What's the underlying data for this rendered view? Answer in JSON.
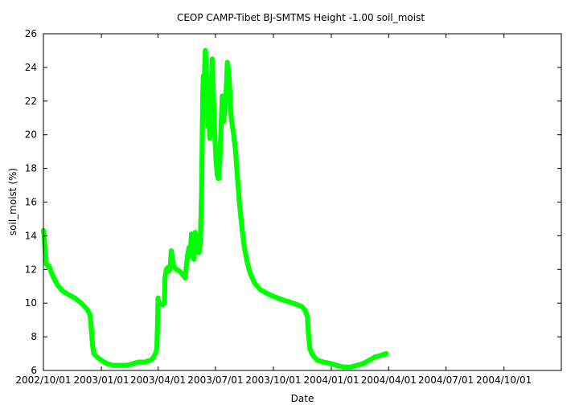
{
  "chart_data": {
    "type": "scatter",
    "title": "CEOP CAMP-Tibet BJ-SMTMS Height -1.00 soil_moist",
    "xlabel": "Date",
    "ylabel": "soil_moist (%)",
    "x_range": [
      "2002/10/01",
      "2004/12/31"
    ],
    "ylim": [
      6,
      26
    ],
    "x_ticks": [
      "2002/10/01",
      "2003/01/01",
      "2003/04/01",
      "2003/07/01",
      "2003/10/01",
      "2004/01/01",
      "2004/04/01",
      "2004/07/01",
      "2004/10/01"
    ],
    "y_ticks": [
      6,
      8,
      10,
      12,
      14,
      16,
      18,
      20,
      22,
      24,
      26
    ],
    "grid": false,
    "marker_color": "#00ff00",
    "series": [
      {
        "points": [
          [
            "2002/10/01",
            14.3
          ],
          [
            "2002/10/02",
            14.0
          ],
          [
            "2002/10/03",
            13.5
          ],
          [
            "2002/10/04",
            13.0
          ],
          [
            "2002/10/05",
            12.6
          ],
          [
            "2002/10/06",
            12.3
          ],
          [
            "2002/10/08",
            12.2
          ],
          [
            "2002/10/10",
            12.2
          ],
          [
            "2002/10/12",
            12.0
          ],
          [
            "2002/10/15",
            11.7
          ],
          [
            "2002/10/20",
            11.3
          ],
          [
            "2002/10/25",
            11.0
          ],
          [
            "2002/11/01",
            10.7
          ],
          [
            "2002/11/10",
            10.5
          ],
          [
            "2002/11/20",
            10.3
          ],
          [
            "2002/11/30",
            10.0
          ],
          [
            "2002/12/05",
            9.8
          ],
          [
            "2002/12/10",
            9.6
          ],
          [
            "2002/12/14",
            9.3
          ],
          [
            "2002/12/16",
            8.5
          ],
          [
            "2002/12/18",
            7.5
          ],
          [
            "2002/12/20",
            7.0
          ],
          [
            "2002/12/25",
            6.8
          ],
          [
            "2003/01/01",
            6.6
          ],
          [
            "2003/01/10",
            6.4
          ],
          [
            "2003/01/20",
            6.3
          ],
          [
            "2003/02/01",
            6.3
          ],
          [
            "2003/02/10",
            6.3
          ],
          [
            "2003/02/20",
            6.4
          ],
          [
            "2003/03/01",
            6.5
          ],
          [
            "2003/03/10",
            6.5
          ],
          [
            "2003/03/20",
            6.6
          ],
          [
            "2003/03/25",
            6.8
          ],
          [
            "2003/03/28",
            7.0
          ],
          [
            "2003/03/30",
            7.3
          ],
          [
            "2003/03/31",
            8.5
          ],
          [
            "2003/04/01",
            10.3
          ],
          [
            "2003/04/02",
            10.1
          ],
          [
            "2003/04/04",
            9.9
          ],
          [
            "2003/04/08",
            9.9
          ],
          [
            "2003/04/11",
            10.0
          ],
          [
            "2003/04/12",
            11.5
          ],
          [
            "2003/04/14",
            12.0
          ],
          [
            "2003/04/16",
            12.1
          ],
          [
            "2003/04/18",
            11.9
          ],
          [
            "2003/04/20",
            12.0
          ],
          [
            "2003/04/22",
            13.1
          ],
          [
            "2003/04/24",
            12.6
          ],
          [
            "2003/04/26",
            12.2
          ],
          [
            "2003/04/30",
            12.0
          ],
          [
            "2003/05/05",
            11.9
          ],
          [
            "2003/05/10",
            11.7
          ],
          [
            "2003/05/14",
            11.5
          ],
          [
            "2003/05/16",
            12.2
          ],
          [
            "2003/05/18",
            12.9
          ],
          [
            "2003/05/20",
            13.3
          ],
          [
            "2003/05/22",
            12.8
          ],
          [
            "2003/05/24",
            14.1
          ],
          [
            "2003/05/26",
            13.6
          ],
          [
            "2003/05/28",
            12.6
          ],
          [
            "2003/05/30",
            14.2
          ],
          [
            "2003/06/01",
            13.8
          ],
          [
            "2003/06/03",
            13.2
          ],
          [
            "2003/06/05",
            13.0
          ],
          [
            "2003/06/07",
            13.5
          ],
          [
            "2003/06/09",
            16.5
          ],
          [
            "2003/06/10",
            19.5
          ],
          [
            "2003/06/11",
            22.5
          ],
          [
            "2003/06/12",
            23.5
          ],
          [
            "2003/06/13",
            22.0
          ],
          [
            "2003/06/14",
            24.0
          ],
          [
            "2003/06/15",
            25.0
          ],
          [
            "2003/06/16",
            24.5
          ],
          [
            "2003/06/17",
            23.0
          ],
          [
            "2003/06/18",
            21.5
          ],
          [
            "2003/06/19",
            20.5
          ],
          [
            "2003/06/20",
            22.5
          ],
          [
            "2003/06/21",
            21.0
          ],
          [
            "2003/06/22",
            19.8
          ],
          [
            "2003/06/24",
            22.5
          ],
          [
            "2003/06/26",
            24.5
          ],
          [
            "2003/06/28",
            22.0
          ],
          [
            "2003/06/30",
            20.0
          ],
          [
            "2003/07/02",
            18.5
          ],
          [
            "2003/07/04",
            17.6
          ],
          [
            "2003/07/06",
            17.4
          ],
          [
            "2003/07/08",
            18.5
          ],
          [
            "2003/07/10",
            20.5
          ],
          [
            "2003/07/12",
            22.3
          ],
          [
            "2003/07/14",
            20.8
          ],
          [
            "2003/07/16",
            21.5
          ],
          [
            "2003/07/18",
            22.5
          ],
          [
            "2003/07/20",
            24.3
          ],
          [
            "2003/07/22",
            23.8
          ],
          [
            "2003/07/24",
            22.5
          ],
          [
            "2003/07/26",
            21.0
          ],
          [
            "2003/07/28",
            20.5
          ],
          [
            "2003/07/30",
            20.0
          ],
          [
            "2003/08/02",
            19.0
          ],
          [
            "2003/08/05",
            17.5
          ],
          [
            "2003/08/08",
            16.0
          ],
          [
            "2003/08/12",
            14.5
          ],
          [
            "2003/08/16",
            13.3
          ],
          [
            "2003/08/20",
            12.5
          ],
          [
            "2003/08/25",
            11.8
          ],
          [
            "2003/09/01",
            11.2
          ],
          [
            "2003/09/10",
            10.8
          ],
          [
            "2003/09/20",
            10.6
          ],
          [
            "2003/10/01",
            10.4
          ],
          [
            "2003/10/15",
            10.2
          ],
          [
            "2003/11/01",
            10.0
          ],
          [
            "2003/11/15",
            9.8
          ],
          [
            "2003/11/20",
            9.6
          ],
          [
            "2003/11/24",
            9.2
          ],
          [
            "2003/11/26",
            8.0
          ],
          [
            "2003/11/28",
            7.3
          ],
          [
            "2003/12/01",
            7.0
          ],
          [
            "2003/12/05",
            6.8
          ],
          [
            "2003/12/10",
            6.6
          ],
          [
            "2003/12/20",
            6.5
          ],
          [
            "2004/01/01",
            6.4
          ],
          [
            "2004/01/10",
            6.3
          ],
          [
            "2004/01/20",
            6.2
          ],
          [
            "2004/02/01",
            6.2
          ],
          [
            "2004/02/10",
            6.3
          ],
          [
            "2004/02/20",
            6.4
          ],
          [
            "2004/03/01",
            6.6
          ],
          [
            "2004/03/10",
            6.8
          ],
          [
            "2004/03/20",
            6.9
          ],
          [
            "2004/03/28",
            7.0
          ]
        ]
      }
    ]
  }
}
